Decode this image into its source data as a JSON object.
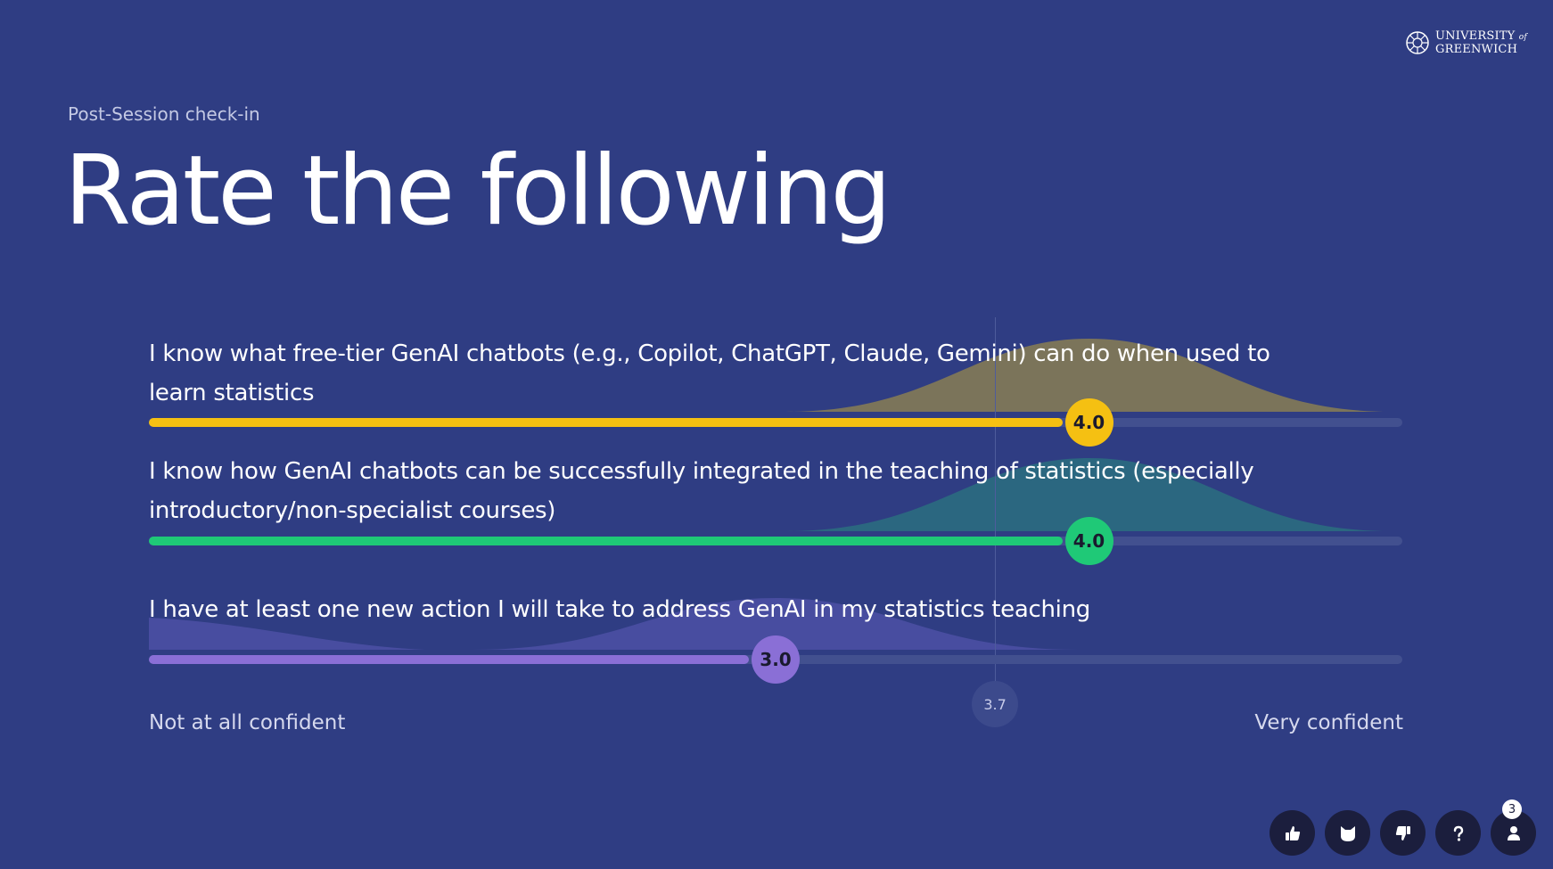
{
  "logo": {
    "line1": "UNIVERSITY",
    "line1_of": "of",
    "line2": "GREENWICH"
  },
  "subtitle": "Post-Session check-in",
  "title": "Rate the following",
  "statements": [
    {
      "text": "I know what free-tier GenAI chatbots (e.g., Copilot, ChatGPT, Claude, Gemini) can do when used to learn statistics",
      "value": 4.0,
      "value_label": "4.0",
      "color": "#f5c012",
      "dist_color": "#847a55"
    },
    {
      "text": "I know how GenAI chatbots can be successfully integrated in the teaching of statistics (especially introductory/non-specialist courses)",
      "value": 4.0,
      "value_label": "4.0",
      "color": "#1fc977",
      "dist_color": "#2b6b7f"
    },
    {
      "text": "I have at least one new action I will take to address GenAI in my statistics teaching",
      "value": 3.0,
      "value_label": "3.0",
      "color": "#8a6fd6",
      "dist_color": "#4b4fa3"
    }
  ],
  "scale": {
    "min_label": "Not at all confident",
    "max_label": "Very confident",
    "min": 1,
    "max": 5
  },
  "average": {
    "value": 3.7,
    "label": "3.7"
  },
  "toolbar": {
    "buttons": [
      "thumbs-up-icon",
      "cat-icon",
      "thumbs-down-icon",
      "question-icon",
      "participants-icon"
    ],
    "participant_count": "3"
  },
  "colors": {
    "background": "#2f3d83",
    "track": "#42508f"
  }
}
